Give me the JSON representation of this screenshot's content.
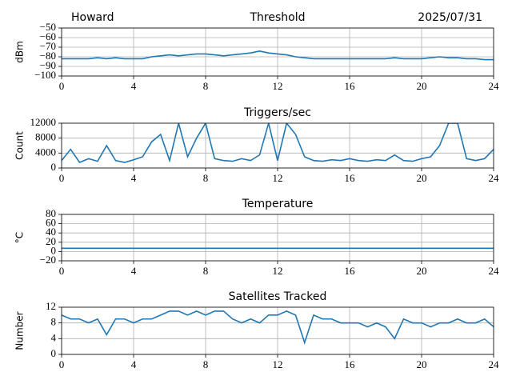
{
  "chart_data": [
    {
      "type": "line",
      "title": "Threshold",
      "title_left": "Howard",
      "title_right": "2025/07/31",
      "ylabel": "dBm",
      "color": "#1f77b4",
      "grid": true,
      "x": [
        0,
        0.5,
        1,
        1.5,
        2,
        2.5,
        3,
        3.5,
        4,
        4.5,
        5,
        5.5,
        6,
        6.5,
        7,
        7.5,
        8,
        8.5,
        9,
        9.5,
        10,
        10.5,
        11,
        11.5,
        12,
        12.5,
        13,
        13.5,
        14,
        14.5,
        15,
        15.5,
        16,
        16.5,
        17,
        17.5,
        18,
        18.5,
        19,
        19.5,
        20,
        20.5,
        21,
        21.5,
        22,
        22.5,
        23,
        23.5,
        24
      ],
      "values": [
        -82,
        -82,
        -82,
        -82,
        -81,
        -82,
        -81,
        -82,
        -82,
        -82,
        -80,
        -79,
        -78,
        -79,
        -78,
        -77,
        -77,
        -78,
        -79,
        -78,
        -77,
        -76,
        -74,
        -76,
        -77,
        -78,
        -80,
        -81,
        -82,
        -82,
        -82,
        -82,
        -82,
        -82,
        -82,
        -82,
        -82,
        -81,
        -82,
        -82,
        -82,
        -81,
        -80,
        -81,
        -81,
        -82,
        -82,
        -83,
        -83
      ],
      "xlim": [
        0,
        24
      ],
      "xticks": [
        0,
        4,
        8,
        12,
        16,
        20,
        24
      ],
      "ylim": [
        -100,
        -50
      ],
      "yticks": [
        {
          "value": -100,
          "label": "−100"
        },
        {
          "value": -90,
          "label": "−90"
        },
        {
          "value": -80,
          "label": "−80"
        },
        {
          "value": -70,
          "label": "−70"
        },
        {
          "value": -60,
          "label": "−60"
        },
        {
          "value": -50,
          "label": "−50"
        }
      ]
    },
    {
      "type": "line",
      "title": "Triggers/sec",
      "ylabel": "Count",
      "color": "#1f77b4",
      "grid": true,
      "x": [
        0,
        0.5,
        1,
        1.5,
        2,
        2.5,
        3,
        3.5,
        4,
        4.5,
        5,
        5.5,
        6,
        6.5,
        7,
        7.5,
        8,
        8.5,
        9,
        9.5,
        10,
        10.5,
        11,
        11.5,
        12,
        12.5,
        13,
        13.5,
        14,
        14.5,
        15,
        15.5,
        16,
        16.5,
        17,
        17.5,
        18,
        18.5,
        19,
        19.5,
        20,
        20.5,
        21,
        21.5,
        22,
        22.5,
        23,
        23.5,
        24
      ],
      "values": [
        2000,
        5000,
        1500,
        2500,
        1800,
        6000,
        2000,
        1500,
        2200,
        3000,
        7000,
        9000,
        2000,
        12000,
        3000,
        8000,
        12000,
        2500,
        2000,
        1800,
        2500,
        2000,
        3500,
        12000,
        2000,
        12000,
        9000,
        3000,
        2000,
        1800,
        2200,
        2000,
        2500,
        2000,
        1800,
        2200,
        2000,
        3500,
        2000,
        1800,
        2500,
        3000,
        6000,
        12000,
        12000,
        2500,
        2000,
        2500,
        5000
      ],
      "xlim": [
        0,
        24
      ],
      "xticks": [
        0,
        4,
        8,
        12,
        16,
        20,
        24
      ],
      "ylim": [
        0,
        12000
      ],
      "yticks": [
        0,
        4000,
        8000,
        12000
      ]
    },
    {
      "type": "line",
      "title": "Temperature",
      "ylabel": "°C",
      "color": "#1f77b4",
      "grid": true,
      "x": [
        0,
        24
      ],
      "values": [
        7,
        7
      ],
      "xlim": [
        0,
        24
      ],
      "xticks": [
        0,
        4,
        8,
        12,
        16,
        20,
        24
      ],
      "ylim": [
        -20,
        80
      ],
      "yticks": [
        {
          "value": -20,
          "label": "−20"
        },
        0,
        20,
        40,
        60,
        80
      ]
    },
    {
      "type": "line",
      "title": "Satellites Tracked",
      "ylabel": "Number",
      "color": "#1f77b4",
      "grid": true,
      "x": [
        0,
        0.5,
        1,
        1.5,
        2,
        2.5,
        3,
        3.5,
        4,
        4.5,
        5,
        5.5,
        6,
        6.5,
        7,
        7.5,
        8,
        8.5,
        9,
        9.5,
        10,
        10.5,
        11,
        11.5,
        12,
        12.5,
        13,
        13.5,
        14,
        14.5,
        15,
        15.5,
        16,
        16.5,
        17,
        17.5,
        18,
        18.5,
        19,
        19.5,
        20,
        20.5,
        21,
        21.5,
        22,
        22.5,
        23,
        23.5,
        24
      ],
      "values": [
        10,
        9,
        9,
        8,
        9,
        5,
        9,
        9,
        8,
        9,
        9,
        10,
        11,
        11,
        10,
        11,
        10,
        11,
        11,
        9,
        8,
        9,
        8,
        10,
        10,
        11,
        10,
        3,
        10,
        9,
        9,
        8,
        8,
        8,
        7,
        8,
        7,
        4,
        9,
        8,
        8,
        7,
        8,
        8,
        9,
        8,
        8,
        9,
        7
      ],
      "xlim": [
        0,
        24
      ],
      "xticks": [
        0,
        4,
        8,
        12,
        16,
        20,
        24
      ],
      "ylim": [
        0,
        12
      ],
      "yticks": [
        0,
        4,
        8,
        12
      ]
    }
  ]
}
